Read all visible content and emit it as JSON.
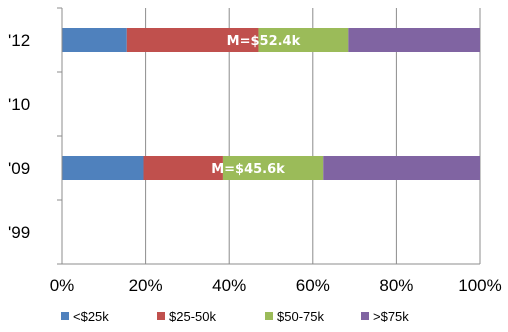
{
  "chart_data": {
    "type": "bar",
    "orientation": "horizontal",
    "stacked": true,
    "normalized_percent": true,
    "categories": [
      "'12",
      "'10",
      "'09",
      "'99"
    ],
    "series": [
      {
        "name": "<$25k",
        "color": "#4f81bd",
        "values": [
          15.5,
          null,
          19.5,
          null
        ]
      },
      {
        "name": "$25-50k",
        "color": "#c0504d",
        "values": [
          31.5,
          null,
          19,
          null
        ]
      },
      {
        "name": "$50-75k",
        "color": "#9bbb59",
        "values": [
          21.5,
          null,
          24,
          null
        ]
      },
      {
        "name": ">$75k",
        "color": "#8064a2",
        "values": [
          31.5,
          null,
          37.5,
          null
        ]
      }
    ],
    "annotations": [
      {
        "category": "'12",
        "text": "M=$52.4k",
        "x": 48.2
      },
      {
        "category": "'09",
        "text": "M=$45.6k",
        "x": 44.5
      }
    ],
    "xlim": [
      0,
      100
    ],
    "x_ticks": [
      "0%",
      "20%",
      "40%",
      "60%",
      "80%",
      "100%"
    ],
    "grid": true,
    "legend_position": "bottom"
  }
}
